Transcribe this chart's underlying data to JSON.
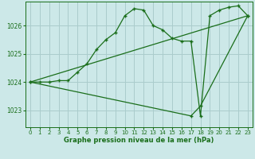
{
  "bg_color": "#cce8e8",
  "grid_color": "#aacccc",
  "line_color": "#1a6e1a",
  "xlabel": "Graphe pression niveau de la mer (hPa)",
  "xlim": [
    -0.5,
    23.5
  ],
  "ylim": [
    1022.4,
    1026.85
  ],
  "yticks": [
    1023,
    1024,
    1025,
    1026
  ],
  "xticks": [
    0,
    1,
    2,
    3,
    4,
    5,
    6,
    7,
    8,
    9,
    10,
    11,
    12,
    13,
    14,
    15,
    16,
    17,
    18,
    19,
    20,
    21,
    22,
    23
  ],
  "line1_x": [
    0,
    1,
    2,
    3,
    4,
    5,
    6,
    7,
    8,
    9,
    10,
    11,
    12,
    13,
    14,
    15,
    16,
    17,
    18,
    19,
    20,
    21,
    22,
    23
  ],
  "line1_y": [
    1024.0,
    1024.0,
    1024.0,
    1024.05,
    1024.05,
    1024.35,
    1024.65,
    1025.15,
    1025.5,
    1025.75,
    1026.35,
    1026.6,
    1026.55,
    1026.0,
    1025.85,
    1025.55,
    1025.45,
    1025.45,
    1022.8,
    1026.35,
    1026.55,
    1026.65,
    1026.7,
    1026.35
  ],
  "line2_x": [
    0,
    17,
    18,
    23
  ],
  "line2_y": [
    1024.0,
    1022.8,
    1023.15,
    1026.35
  ],
  "line3_x": [
    0,
    23
  ],
  "line3_y": [
    1024.0,
    1026.35
  ]
}
